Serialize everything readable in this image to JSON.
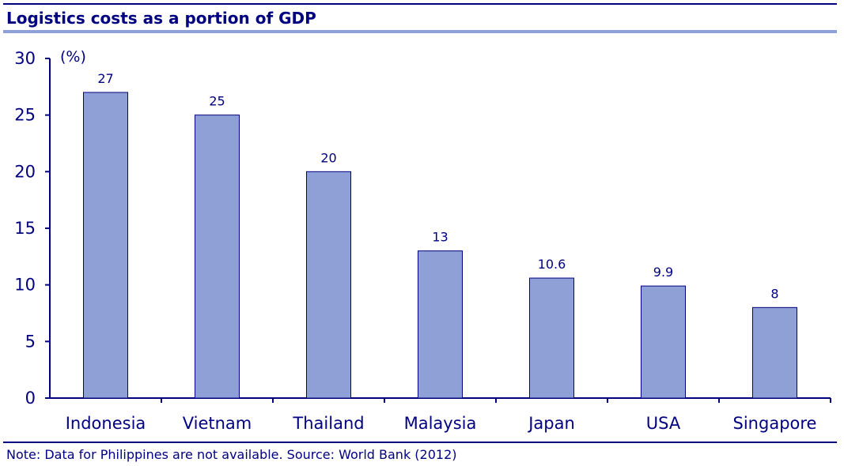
{
  "header": {
    "title": "Logistics costs as a portion of GDP"
  },
  "footer": {
    "note": "Note: Data for Philippines are not available. Source: World Bank (2012)"
  },
  "colors": {
    "bar": "#8EA0D6",
    "bar_stroke": "#000080",
    "text": "#000080",
    "accent_rule": "#8EA0D6"
  },
  "chart_data": {
    "type": "bar",
    "title": "Logistics costs as a portion of GDP",
    "ylabel": "(%)",
    "xlabel": "",
    "categories": [
      "Indonesia",
      "Vietnam",
      "Thailand",
      "Malaysia",
      "Japan",
      "USA",
      "Singapore"
    ],
    "values": [
      27,
      25,
      20,
      13,
      10.6,
      9.9,
      8
    ],
    "value_labels": [
      "27",
      "25",
      "20",
      "13",
      "10.6",
      "9.9",
      "8"
    ],
    "ylim": [
      0,
      30
    ],
    "yticks": [
      0,
      5,
      10,
      15,
      20,
      25,
      30
    ],
    "grid": false,
    "legend": "none"
  }
}
